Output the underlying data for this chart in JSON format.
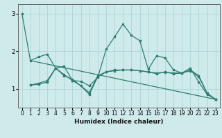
{
  "xlabel": "Humidex (Indice chaleur)",
  "bg_color": "#ceeaea",
  "line_color": "#2e7d6e",
  "grid_color": "#afd4d4",
  "xlim": [
    -0.5,
    23.5
  ],
  "ylim": [
    0.5,
    3.25
  ],
  "yticks": [
    1,
    2,
    3
  ],
  "xticks": [
    0,
    1,
    2,
    3,
    4,
    5,
    6,
    7,
    8,
    9,
    10,
    11,
    12,
    13,
    14,
    15,
    16,
    17,
    18,
    19,
    20,
    21,
    22,
    23
  ],
  "lines": [
    {
      "x": [
        0,
        1,
        2,
        3,
        4,
        5,
        6,
        7,
        8,
        9,
        10,
        11,
        12,
        13,
        14,
        15,
        16,
        17,
        18,
        19,
        20,
        21,
        22,
        23
      ],
      "y": [
        3.0,
        1.75,
        1.85,
        1.92,
        1.55,
        1.6,
        1.22,
        1.2,
        1.08,
        1.3,
        2.05,
        2.38,
        2.72,
        2.42,
        2.28,
        1.52,
        1.88,
        1.82,
        1.5,
        1.42,
        1.55,
        1.18,
        0.85,
        0.72
      ]
    },
    {
      "x": [
        1,
        23
      ],
      "y": [
        1.75,
        0.72
      ]
    },
    {
      "x": [
        1,
        2,
        3,
        4,
        5,
        6,
        7,
        8,
        9,
        10,
        11,
        12,
        13,
        14,
        15,
        16,
        17,
        18,
        19,
        20,
        21,
        22,
        23
      ],
      "y": [
        1.1,
        1.12,
        1.18,
        1.55,
        1.35,
        1.25,
        1.08,
        0.85,
        1.32,
        1.45,
        1.48,
        1.5,
        1.5,
        1.48,
        1.45,
        1.42,
        1.44,
        1.42,
        1.42,
        1.48,
        1.32,
        0.88,
        0.72
      ]
    },
    {
      "x": [
        1,
        2,
        3,
        4,
        5,
        6,
        7,
        8,
        9,
        10,
        11,
        12,
        13,
        14,
        15,
        16,
        17,
        18,
        19,
        20,
        21,
        22,
        23
      ],
      "y": [
        1.1,
        1.15,
        1.22,
        1.55,
        1.38,
        1.22,
        1.08,
        0.9,
        1.35,
        1.45,
        1.5,
        1.5,
        1.5,
        1.48,
        1.45,
        1.4,
        1.45,
        1.4,
        1.42,
        1.5,
        1.35,
        0.88,
        0.72
      ]
    }
  ]
}
